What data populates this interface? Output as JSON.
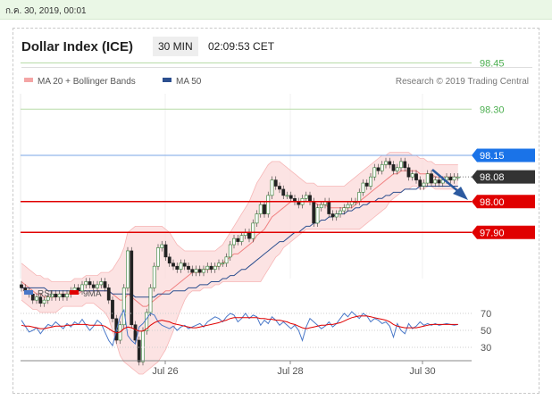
{
  "datebar": {
    "text": "ก.ค. 30, 2019, 00:01"
  },
  "header": {
    "title": "Dollar Index (ICE)",
    "timeframe": "30 MIN",
    "time": "02:09:53 CET"
  },
  "legend": {
    "bands_label": "MA 20 + Bollinger Bands",
    "ma50_label": "MA 50",
    "copyright": "Research © 2019 Trading Central",
    "bands_color": "#f08080",
    "ma50_color": "#2c4f8f"
  },
  "chart_data": [
    {
      "type": "candlestick",
      "x_tick_labels": [
        "Jul 26",
        "Jul 28",
        "Jul 30"
      ],
      "y_tick_labels": [
        "98.45",
        "98.30",
        "98.15",
        "98.08",
        "98.00",
        "97.90"
      ],
      "ylim": [
        97.4,
        98.5
      ],
      "levels": [
        {
          "label": "98.45",
          "value": 98.45,
          "kind": "target",
          "color": "#5cb85c"
        },
        {
          "label": "98.30",
          "value": 98.3,
          "kind": "target",
          "color": "#5cb85c"
        },
        {
          "label": "98.15",
          "value": 98.15,
          "kind": "resistance",
          "color": "#1a73e8"
        },
        {
          "label": "98.08",
          "value": 98.08,
          "kind": "last price",
          "color": "#333333"
        },
        {
          "label": "98.00",
          "value": 98.0,
          "kind": "support",
          "color": "#e00000"
        },
        {
          "label": "97.90",
          "value": 97.9,
          "kind": "support",
          "color": "#e00000"
        }
      ],
      "close": [
        97.72,
        97.71,
        97.7,
        97.68,
        97.69,
        97.67,
        97.68,
        97.69,
        97.7,
        97.69,
        97.7,
        97.69,
        97.7,
        97.71,
        97.72,
        97.71,
        97.73,
        97.74,
        97.73,
        97.72,
        97.73,
        97.74,
        97.72,
        97.68,
        97.62,
        97.55,
        97.6,
        97.72,
        97.84,
        97.6,
        97.55,
        97.48,
        97.58,
        97.64,
        97.72,
        97.79,
        97.85,
        97.86,
        97.82,
        97.8,
        97.79,
        97.78,
        97.8,
        97.79,
        97.78,
        97.77,
        97.78,
        97.77,
        97.78,
        97.79,
        97.78,
        97.79,
        97.8,
        97.8,
        97.82,
        97.86,
        97.88,
        97.87,
        97.89,
        97.9,
        97.88,
        97.93,
        97.96,
        97.99,
        97.96,
        98.02,
        98.07,
        98.05,
        98.04,
        98.02,
        98.02,
        98.01,
        98.0,
        97.99,
        98.01,
        98.02,
        98.0,
        97.93,
        97.98,
        97.99,
        98.0,
        97.96,
        97.95,
        97.96,
        97.97,
        97.98,
        97.99,
        98.0,
        98.0,
        98.03,
        98.06,
        98.05,
        98.08,
        98.11,
        98.1,
        98.12,
        98.13,
        98.12,
        98.1,
        98.11,
        98.13,
        98.11,
        98.08,
        98.09,
        98.07,
        98.05,
        98.06,
        98.09,
        98.06,
        98.07,
        98.06,
        98.07,
        98.08,
        98.07,
        98.08,
        98.08
      ],
      "ma20": [
        97.74,
        97.73,
        97.72,
        97.71,
        97.7,
        97.7,
        97.69,
        97.69,
        97.69,
        97.69,
        97.7,
        97.7,
        97.7,
        97.7,
        97.7,
        97.7,
        97.71,
        97.71,
        97.71,
        97.71,
        97.71,
        97.71,
        97.71,
        97.71,
        97.7,
        97.69,
        97.68,
        97.68,
        97.7,
        97.69,
        97.68,
        97.67,
        97.66,
        97.66,
        97.67,
        97.68,
        97.69,
        97.7,
        97.71,
        97.71,
        97.72,
        97.73,
        97.74,
        97.75,
        97.76,
        97.77,
        97.77,
        97.77,
        97.78,
        97.78,
        97.78,
        97.79,
        97.79,
        97.8,
        97.81,
        97.82,
        97.83,
        97.83,
        97.84,
        97.85,
        97.86,
        97.87,
        97.89,
        97.9,
        97.91,
        97.93,
        97.95,
        97.96,
        97.97,
        97.98,
        97.99,
        98.0,
        98.0,
        98.0,
        98.0,
        98.0,
        98.0,
        98.0,
        97.99,
        97.99,
        97.99,
        97.98,
        97.98,
        97.98,
        97.98,
        97.98,
        97.98,
        97.98,
        97.99,
        98.0,
        98.01,
        98.02,
        98.03,
        98.04,
        98.05,
        98.06,
        98.07,
        98.08,
        98.09,
        98.09,
        98.1,
        98.1,
        98.1,
        98.1,
        98.1,
        98.09,
        98.09,
        98.09,
        98.09,
        98.08,
        98.08,
        98.08,
        98.08,
        98.08,
        98.08,
        98.08
      ],
      "upper_band": [
        97.8,
        97.79,
        97.78,
        97.77,
        97.76,
        97.76,
        97.75,
        97.75,
        97.74,
        97.74,
        97.74,
        97.74,
        97.74,
        97.74,
        97.75,
        97.75,
        97.75,
        97.76,
        97.76,
        97.76,
        97.76,
        97.77,
        97.77,
        97.77,
        97.78,
        97.8,
        97.82,
        97.85,
        97.9,
        97.91,
        97.92,
        97.92,
        97.92,
        97.92,
        97.92,
        97.92,
        97.92,
        97.92,
        97.91,
        97.9,
        97.88,
        97.86,
        97.85,
        97.84,
        97.84,
        97.84,
        97.84,
        97.84,
        97.84,
        97.84,
        97.84,
        97.84,
        97.85,
        97.86,
        97.88,
        97.9,
        97.92,
        97.94,
        97.96,
        97.98,
        98.0,
        98.03,
        98.06,
        98.08,
        98.1,
        98.12,
        98.13,
        98.13,
        98.13,
        98.12,
        98.11,
        98.1,
        98.09,
        98.08,
        98.07,
        98.06,
        98.06,
        98.06,
        98.05,
        98.05,
        98.05,
        98.05,
        98.05,
        98.05,
        98.05,
        98.05,
        98.06,
        98.07,
        98.08,
        98.09,
        98.1,
        98.11,
        98.12,
        98.13,
        98.14,
        98.15,
        98.15,
        98.16,
        98.16,
        98.16,
        98.16,
        98.16,
        98.16,
        98.15,
        98.15,
        98.14,
        98.14,
        98.13,
        98.13,
        98.12,
        98.12,
        98.12,
        98.12,
        98.12,
        98.12,
        98.12
      ],
      "lower_band": [
        97.68,
        97.67,
        97.66,
        97.65,
        97.65,
        97.64,
        97.64,
        97.64,
        97.64,
        97.64,
        97.65,
        97.66,
        97.66,
        97.66,
        97.66,
        97.66,
        97.66,
        97.67,
        97.67,
        97.67,
        97.66,
        97.65,
        97.64,
        97.62,
        97.58,
        97.54,
        97.5,
        97.48,
        97.47,
        97.46,
        97.45,
        97.44,
        97.44,
        97.45,
        97.46,
        97.47,
        97.48,
        97.5,
        97.52,
        97.55,
        97.58,
        97.62,
        97.65,
        97.68,
        97.7,
        97.71,
        97.71,
        97.71,
        97.72,
        97.72,
        97.72,
        97.73,
        97.73,
        97.74,
        97.74,
        97.74,
        97.74,
        97.74,
        97.74,
        97.74,
        97.74,
        97.74,
        97.74,
        97.74,
        97.76,
        97.78,
        97.8,
        97.82,
        97.83,
        97.85,
        97.86,
        97.87,
        97.88,
        97.89,
        97.9,
        97.91,
        97.91,
        97.91,
        97.91,
        97.91,
        97.91,
        97.91,
        97.91,
        97.91,
        97.91,
        97.91,
        97.91,
        97.91,
        97.91,
        97.91,
        97.92,
        97.93,
        97.94,
        97.95,
        97.96,
        97.97,
        97.98,
        98.0,
        98.01,
        98.02,
        98.03,
        98.04,
        98.04,
        98.05,
        98.05,
        98.04,
        98.04,
        98.05,
        98.05,
        98.04,
        98.04,
        98.04,
        98.04,
        98.04,
        98.04,
        98.04
      ],
      "ma50": [
        97.72,
        97.72,
        97.72,
        97.72,
        97.72,
        97.72,
        97.72,
        97.71,
        97.71,
        97.71,
        97.71,
        97.71,
        97.71,
        97.71,
        97.71,
        97.71,
        97.71,
        97.71,
        97.71,
        97.71,
        97.71,
        97.71,
        97.71,
        97.71,
        97.7,
        97.7,
        97.7,
        97.7,
        97.7,
        97.7,
        97.69,
        97.69,
        97.69,
        97.69,
        97.69,
        97.69,
        97.7,
        97.7,
        97.7,
        97.7,
        97.71,
        97.71,
        97.71,
        97.71,
        97.72,
        97.72,
        97.72,
        97.73,
        97.73,
        97.73,
        97.74,
        97.74,
        97.74,
        97.75,
        97.75,
        97.76,
        97.76,
        97.77,
        97.78,
        97.78,
        97.79,
        97.8,
        97.81,
        97.82,
        97.83,
        97.84,
        97.85,
        97.86,
        97.87,
        97.87,
        97.88,
        97.89,
        97.9,
        97.9,
        97.91,
        97.92,
        97.92,
        97.93,
        97.93,
        97.94,
        97.94,
        97.95,
        97.95,
        97.96,
        97.96,
        97.96,
        97.97,
        97.97,
        97.98,
        97.98,
        97.99,
        97.99,
        98.0,
        98.0,
        98.01,
        98.01,
        98.02,
        98.02,
        98.03,
        98.03,
        98.03,
        98.04,
        98.04,
        98.04,
        98.04,
        98.05,
        98.05,
        98.05,
        98.05,
        98.05,
        98.05,
        98.05,
        98.05,
        98.05,
        98.05,
        98.05
      ],
      "annotation": "projected move lower (arrow toward 97.90)"
    },
    {
      "type": "line",
      "series": [
        {
          "name": "RSI",
          "color": "#4a78c8"
        },
        {
          "name": "9MA",
          "color": "#e00000"
        }
      ],
      "y_tick_labels": [
        "70",
        "50",
        "30"
      ],
      "ylim": [
        25,
        75
      ],
      "rsi": [
        62,
        55,
        48,
        50,
        53,
        46,
        52,
        57,
        55,
        60,
        56,
        52,
        58,
        54,
        60,
        57,
        63,
        56,
        50,
        55,
        62,
        58,
        48,
        38,
        32,
        50,
        66,
        74,
        44,
        38,
        34,
        54,
        58,
        64,
        70,
        68,
        60,
        56,
        54,
        52,
        55,
        50,
        54,
        56,
        52,
        54,
        56,
        58,
        54,
        60,
        63,
        66,
        64,
        60,
        66,
        70,
        68,
        60,
        64,
        70,
        64,
        68,
        66,
        56,
        62,
        58,
        66,
        62,
        56,
        60,
        56,
        52,
        56,
        50,
        38,
        54,
        64,
        60,
        56,
        52,
        55,
        60,
        54,
        58,
        64,
        70,
        66,
        72,
        68,
        64,
        70,
        67,
        60,
        64,
        62,
        58,
        60,
        55,
        42,
        58,
        50,
        46,
        58,
        52,
        55,
        60,
        56,
        58,
        56,
        58,
        56,
        57,
        58,
        57,
        56,
        57
      ],
      "rsi_ma": [
        56,
        55,
        55,
        54,
        53,
        52,
        52,
        53,
        54,
        55,
        55,
        55,
        56,
        56,
        57,
        57,
        57,
        57,
        56,
        56,
        56,
        56,
        55,
        52,
        49,
        47,
        48,
        52,
        54,
        53,
        51,
        49,
        49,
        52,
        56,
        59,
        61,
        62,
        61,
        60,
        58,
        57,
        56,
        55,
        54,
        53,
        53,
        54,
        55,
        56,
        57,
        58,
        59,
        61,
        62,
        64,
        65,
        65,
        65,
        65,
        65,
        65,
        65,
        64,
        64,
        63,
        63,
        62,
        62,
        61,
        60,
        58,
        57,
        55,
        53,
        52,
        53,
        54,
        55,
        56,
        56,
        57,
        57,
        58,
        59,
        61,
        63,
        65,
        66,
        67,
        67,
        67,
        66,
        65,
        64,
        63,
        62,
        60,
        57,
        55,
        54,
        53,
        53,
        53,
        53,
        54,
        55,
        56,
        57,
        57,
        57,
        57,
        57,
        57,
        57,
        57
      ]
    }
  ]
}
